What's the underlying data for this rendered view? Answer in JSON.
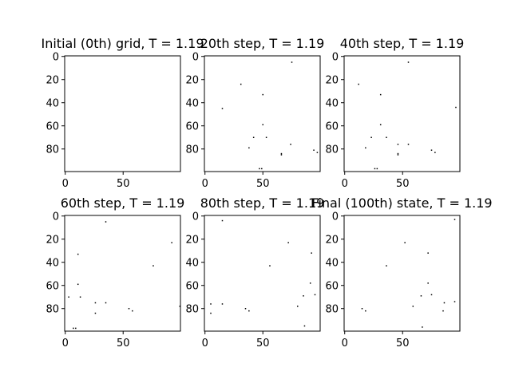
{
  "chart_data": [
    {
      "type": "heatmap",
      "title": "Initial (0th) grid, T = 1.19",
      "grid_size": 100,
      "xticks": [
        0,
        50
      ],
      "yticks": [
        0,
        20,
        40,
        60,
        80
      ],
      "colors": {
        "background": "#ffffff",
        "spin": "#000000"
      },
      "points": []
    },
    {
      "type": "heatmap",
      "title": "20th step, T = 1.19",
      "grid_size": 100,
      "xticks": [
        0,
        50
      ],
      "yticks": [
        0,
        20,
        40,
        60,
        80
      ],
      "colors": {
        "background": "#ffffff",
        "spin": "#000000"
      },
      "points": [
        [
          75,
          5
        ],
        [
          31,
          24
        ],
        [
          15,
          45
        ],
        [
          50,
          33
        ],
        [
          50,
          59
        ],
        [
          42,
          70
        ],
        [
          53,
          70
        ],
        [
          74,
          76
        ],
        [
          38,
          79
        ],
        [
          66,
          84
        ],
        [
          66,
          85
        ],
        [
          47,
          97
        ],
        [
          49,
          97
        ],
        [
          94,
          81
        ],
        [
          97,
          83
        ]
      ]
    },
    {
      "type": "heatmap",
      "title": "40th step, T = 1.19",
      "grid_size": 100,
      "xticks": [
        0,
        50
      ],
      "yticks": [
        0,
        20,
        40,
        60,
        80
      ],
      "colors": {
        "background": "#ffffff",
        "spin": "#000000"
      },
      "points": [
        [
          55,
          5
        ],
        [
          12,
          24
        ],
        [
          31,
          33
        ],
        [
          31,
          59
        ],
        [
          23,
          70
        ],
        [
          36,
          70
        ],
        [
          18,
          79
        ],
        [
          46,
          76
        ],
        [
          55,
          76
        ],
        [
          46,
          84
        ],
        [
          46,
          85
        ],
        [
          75,
          81
        ],
        [
          78,
          83
        ],
        [
          96,
          44
        ],
        [
          26,
          97
        ],
        [
          28,
          97
        ]
      ]
    },
    {
      "type": "heatmap",
      "title": "60th step, T = 1.19",
      "grid_size": 100,
      "xticks": [
        0,
        50
      ],
      "yticks": [
        0,
        20,
        40,
        60,
        80
      ],
      "colors": {
        "background": "#ffffff",
        "spin": "#000000"
      },
      "points": [
        [
          35,
          5
        ],
        [
          92,
          23
        ],
        [
          11,
          33
        ],
        [
          11,
          59
        ],
        [
          76,
          43
        ],
        [
          3,
          70
        ],
        [
          13,
          70
        ],
        [
          26,
          75
        ],
        [
          35,
          75
        ],
        [
          26,
          84
        ],
        [
          55,
          80
        ],
        [
          58,
          82
        ],
        [
          99,
          78
        ],
        [
          7,
          97
        ],
        [
          9,
          97
        ]
      ]
    },
    {
      "type": "heatmap",
      "title": "80th step, T = 1.19",
      "grid_size": 100,
      "xticks": [
        0,
        50
      ],
      "yticks": [
        0,
        20,
        40,
        60,
        80
      ],
      "colors": {
        "background": "#ffffff",
        "spin": "#000000"
      },
      "points": [
        [
          15,
          4
        ],
        [
          72,
          23
        ],
        [
          92,
          32
        ],
        [
          56,
          43
        ],
        [
          91,
          58
        ],
        [
          85,
          69
        ],
        [
          95,
          68
        ],
        [
          5,
          76
        ],
        [
          15,
          76
        ],
        [
          80,
          78
        ],
        [
          5,
          84
        ],
        [
          35,
          80
        ],
        [
          38,
          82
        ],
        [
          86,
          95
        ]
      ]
    },
    {
      "type": "heatmap",
      "title": "Final (100th) state, T = 1.19",
      "grid_size": 100,
      "xticks": [
        0,
        50
      ],
      "yticks": [
        0,
        20,
        40,
        60,
        80
      ],
      "colors": {
        "background": "#ffffff",
        "spin": "#000000"
      },
      "points": [
        [
          95,
          3
        ],
        [
          52,
          23
        ],
        [
          72,
          32
        ],
        [
          36,
          43
        ],
        [
          72,
          58
        ],
        [
          66,
          69
        ],
        [
          75,
          68
        ],
        [
          86,
          75
        ],
        [
          95,
          74
        ],
        [
          59,
          78
        ],
        [
          85,
          82
        ],
        [
          15,
          80
        ],
        [
          18,
          82
        ],
        [
          67,
          96
        ]
      ]
    }
  ]
}
